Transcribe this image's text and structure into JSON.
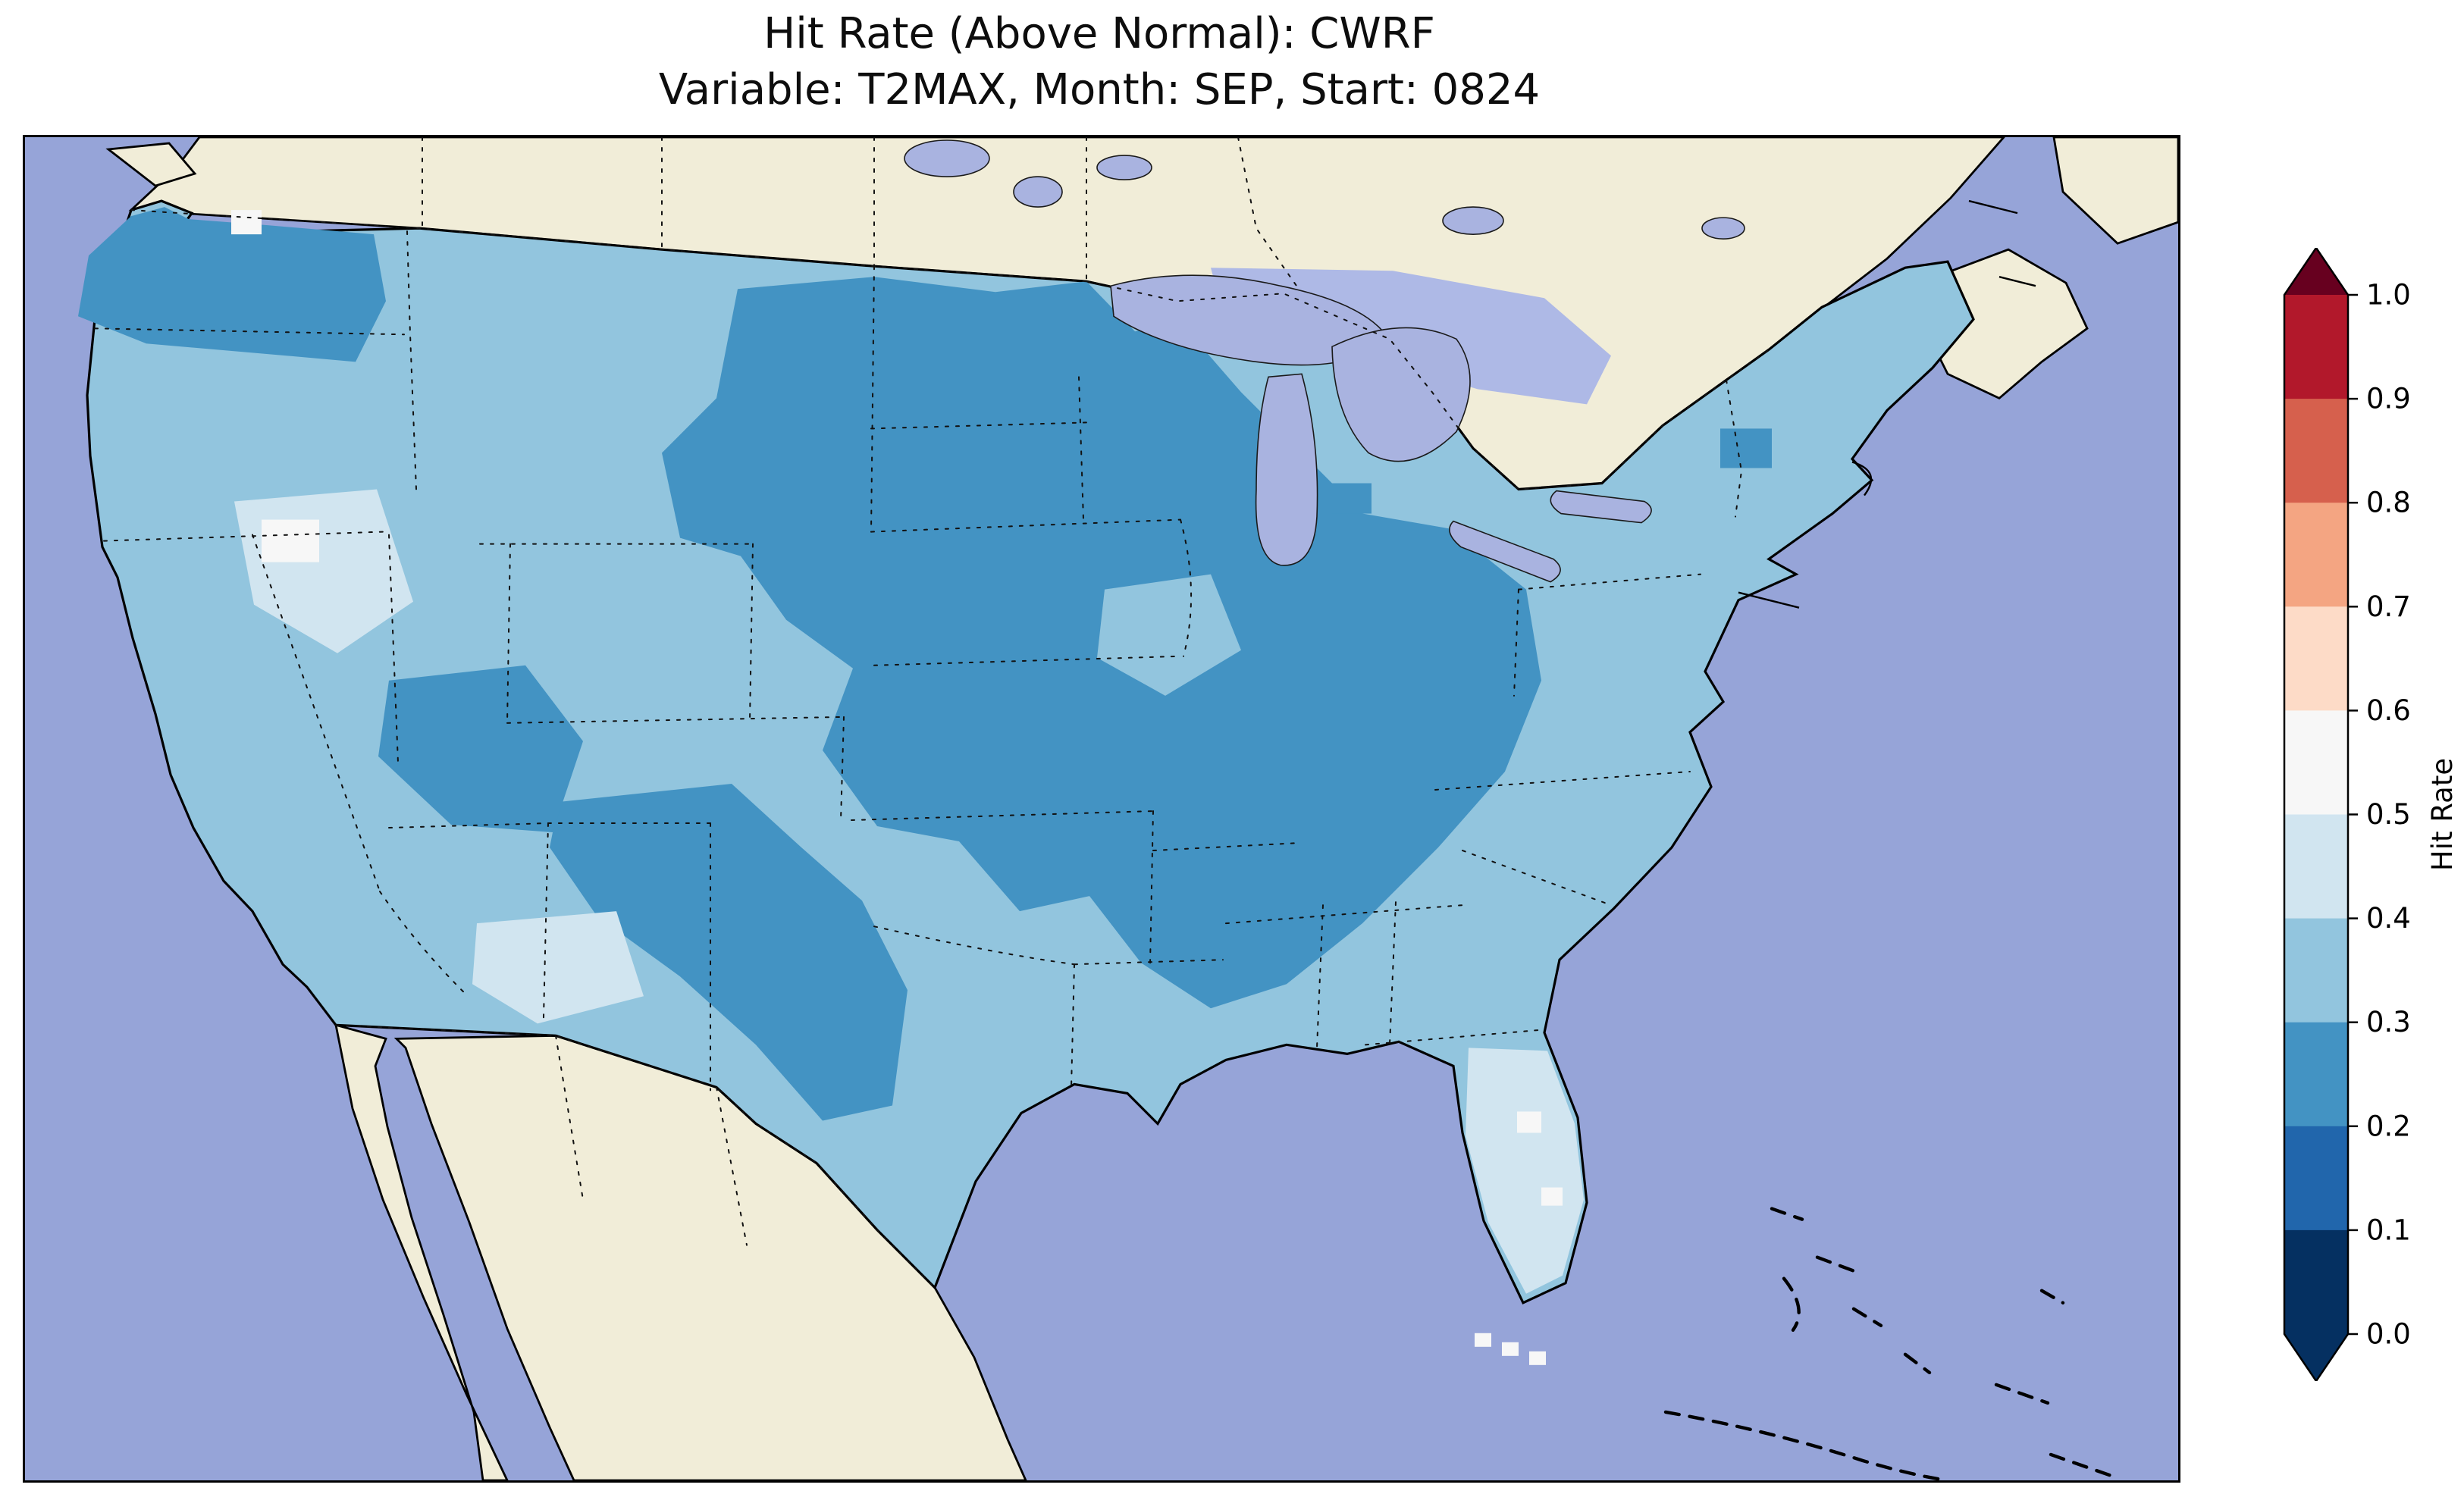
{
  "figure": {
    "title_line1": "Hit Rate (Above Normal): CWRF",
    "title_line2": "Variable: T2MAX, Month: SEP, Start: 0824",
    "background": "#ffffff"
  },
  "map": {
    "ocean_color": "#96a4d8",
    "land_color": "#f1edd8",
    "lake_color": "#a9b3e0",
    "coastline_color": "#000000",
    "cell_colors": {
      "0.2-0.3": "#4393c3",
      "0.3-0.4": "#92c5de",
      "0.4-0.5": "#d1e5f0",
      "0.5-0.6": "#f7f7f7"
    }
  },
  "colorbar": {
    "label": "Hit Rate",
    "tick_labels": [
      "1.0",
      "0.9",
      "0.8",
      "0.7",
      "0.6",
      "0.5",
      "0.4",
      "0.3",
      "0.2",
      "0.1",
      "0.0"
    ],
    "segment_colors_top_to_bottom": [
      "#b2182b",
      "#d6604d",
      "#f4a582",
      "#fddbc7",
      "#f7f7f7",
      "#d1e5f0",
      "#92c5de",
      "#4393c3",
      "#2166ac",
      "#053061"
    ],
    "over_arrow_color": "#67001f",
    "under_arrow_color": "#053061"
  },
  "chart_data": {
    "type": "heatmap",
    "title": "Hit Rate (Above Normal): CWRF",
    "subtitle": "Variable: T2MAX, Month: SEP, Start: 0824",
    "model": "CWRF",
    "metric": "Hit Rate (Above Normal)",
    "variable": "T2MAX",
    "month": "SEP",
    "start": "0824",
    "colorbar_label": "Hit Rate",
    "value_range": [
      0.0,
      1.0
    ],
    "bin_edges": [
      0.0,
      0.1,
      0.2,
      0.3,
      0.4,
      0.5,
      0.6,
      0.7,
      0.8,
      0.9,
      1.0
    ],
    "colormap": "RdBu reversed (dark blue = low, dark red = high), extended arrows both ends",
    "extent": "CONUS map; oceans periwinkle blue, non-US land beige, Great Lakes lavender",
    "legend_position": "vertical colorbar at right",
    "observed_regional_values": [
      {
        "region": "Washington / Pacific Northwest",
        "hit_rate_bin": "0.2-0.3"
      },
      {
        "region": "Northern Plains (MT, ND, SD, MN)",
        "hit_rate_bin": "0.2-0.3"
      },
      {
        "region": "Upper Midwest and Great Lakes (WI, MI, IL, IN, OH)",
        "hit_rate_bin": "0.2-0.3"
      },
      {
        "region": "Ohio and Tennessee valleys (MO, KY, TN, northern AL/MS)",
        "hit_rate_bin": "0.2-0.3"
      },
      {
        "region": "West and central Texas, eastern New Mexico",
        "hit_rate_bin": "0.2-0.3"
      },
      {
        "region": "Four Corners (Utah / northern Arizona)",
        "hit_rate_bin": "0.2-0.3"
      },
      {
        "region": "Most of the remaining CONUS",
        "hit_rate_bin": "0.3-0.4"
      },
      {
        "region": "Nevada / Great Basin",
        "hit_rate_bin": "0.4-0.5 with small 0.5-0.6 spots"
      },
      {
        "region": "Southern New Mexico",
        "hit_rate_bin": "0.4-0.5"
      },
      {
        "region": "Florida peninsula and Keys",
        "hit_rate_bin": "0.4-0.5 with 0.5-0.6 cells"
      }
    ]
  }
}
